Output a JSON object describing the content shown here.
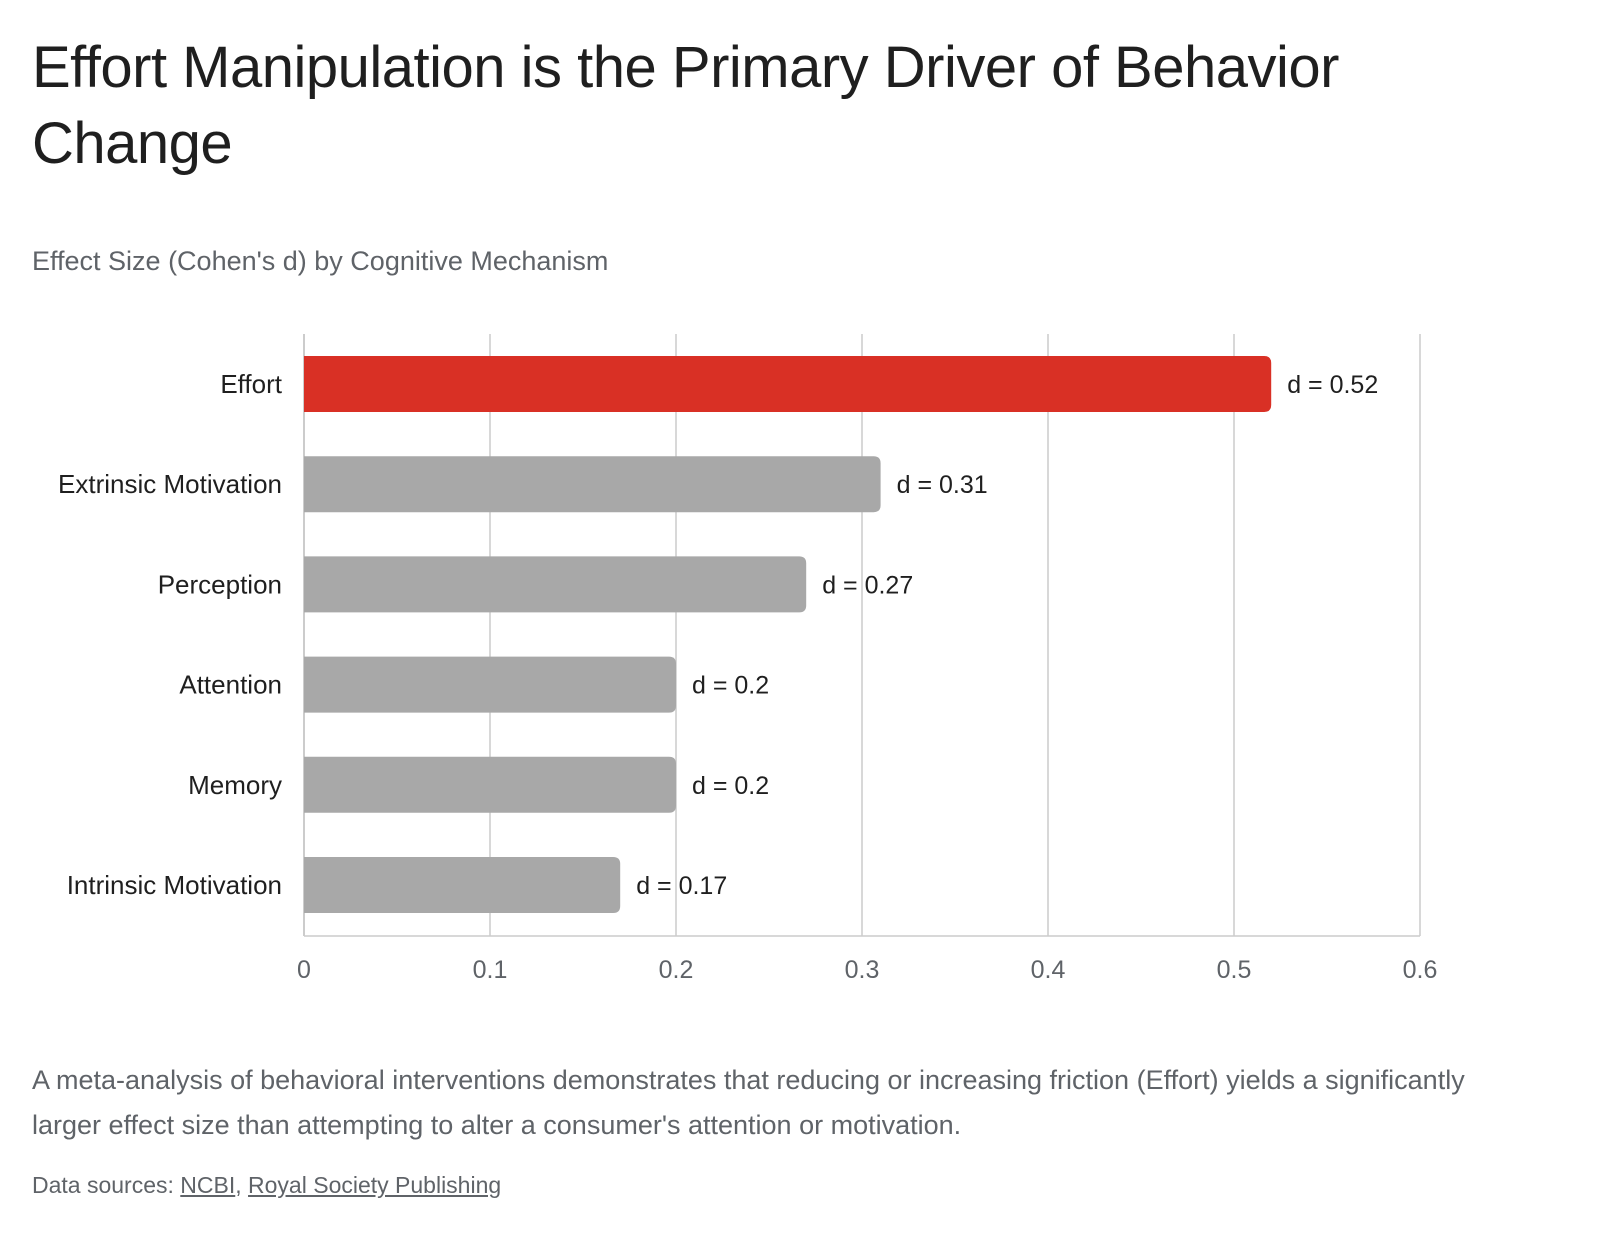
{
  "page": {
    "title": "Effort Manipulation is the Primary Driver of Behavior Change",
    "subtitle": "Effect Size (Cohen's d) by Cognitive Mechanism",
    "caption": "A meta-analysis of behavioral interventions demonstrates that reducing or increasing friction (Effort) yields a significantly larger effect size than attempting to alter a consumer's attention or motivation.",
    "sources_prefix": "Data sources: ",
    "sources_separator": ", ",
    "sources": [
      "NCBI",
      "Royal Society Publishing"
    ]
  },
  "chart_data": {
    "type": "bar",
    "orientation": "horizontal",
    "title": "Effect Size (Cohen's d) by Cognitive Mechanism",
    "categories": [
      "Effort",
      "Extrinsic Motivation",
      "Perception",
      "Attention",
      "Memory",
      "Intrinsic Motivation"
    ],
    "values": [
      0.52,
      0.31,
      0.27,
      0.2,
      0.2,
      0.17
    ],
    "data_labels": [
      "d = 0.52",
      "d = 0.31",
      "d = 0.27",
      "d = 0.2",
      "d = 0.2",
      "d = 0.17"
    ],
    "xlim": [
      0,
      0.6
    ],
    "xticks": [
      0,
      0.1,
      0.2,
      0.3,
      0.4,
      0.5,
      0.6
    ],
    "xtick_labels": [
      "0",
      "0.1",
      "0.2",
      "0.3",
      "0.4",
      "0.5",
      "0.6"
    ],
    "grid": true,
    "legend": "none",
    "colors": {
      "highlight": "#d93025",
      "default": "#a8a8a8",
      "grid": "#cccccc",
      "axis_text": "#5f6368",
      "category_text": "#1f1f1f"
    },
    "highlight_index": 0
  }
}
